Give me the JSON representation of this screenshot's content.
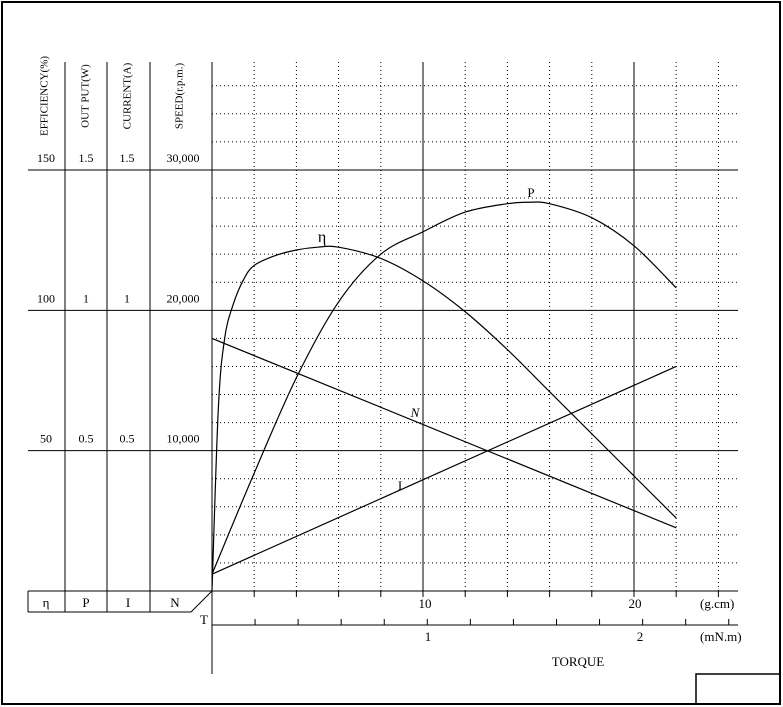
{
  "chart_data": {
    "type": "line",
    "title": "",
    "xlabel": "TORQUE",
    "x_units": {
      "primary": "(g.cm)",
      "secondary": "(mN.m)"
    },
    "xlim": [
      0,
      25
    ],
    "x_ticks_gcm": [
      10,
      20
    ],
    "x_ticks_mNm": [
      1,
      2
    ],
    "mNm_per_gcm": 0.098,
    "grid": "dotted",
    "axes": [
      {
        "key": "eta",
        "symbol": "η",
        "label": "EFFICIENCY(%)",
        "ticks": [
          "50",
          "100",
          "150"
        ],
        "max": 150
      },
      {
        "key": "P",
        "symbol": "P",
        "label": "OUT PUT(W)",
        "ticks": [
          "0.5",
          "1",
          "1.5"
        ],
        "max": 1.5
      },
      {
        "key": "I",
        "symbol": "I",
        "label": "CURRENT(A)",
        "ticks": [
          "0.5",
          "1",
          "1.5"
        ],
        "max": 1.5
      },
      {
        "key": "N",
        "symbol": "N",
        "label": "SPEED(r.p.m.)",
        "ticks": [
          "10,000",
          "20,000",
          "30,000"
        ],
        "max": 30000
      }
    ],
    "origin_label": "T",
    "series": [
      {
        "name": "η",
        "axis": "eta",
        "x": [
          0,
          0.3,
          0.6,
          1,
          1.5,
          2,
          3,
          4,
          5,
          6,
          8,
          10,
          12,
          14,
          16,
          18,
          20,
          22
        ],
        "y": [
          0,
          65,
          90,
          102,
          111,
          116,
          119.5,
          121.5,
          122.5,
          122.5,
          118.5,
          110.5,
          99.5,
          86,
          71,
          56,
          41,
          26
        ]
      },
      {
        "name": "P",
        "axis": "P",
        "x": [
          0,
          2,
          4,
          6,
          8,
          10,
          12,
          14,
          15,
          16,
          18,
          20,
          22
        ],
        "y": [
          0.06,
          0.42,
          0.76,
          1.03,
          1.2,
          1.28,
          1.35,
          1.38,
          1.385,
          1.38,
          1.33,
          1.23,
          1.08
        ]
      },
      {
        "name": "N",
        "axis": "N",
        "x": [
          0,
          22
        ],
        "y": [
          18000,
          4500
        ]
      },
      {
        "name": "I",
        "axis": "I",
        "x": [
          0,
          22
        ],
        "y": [
          0.06,
          0.8
        ]
      }
    ]
  }
}
